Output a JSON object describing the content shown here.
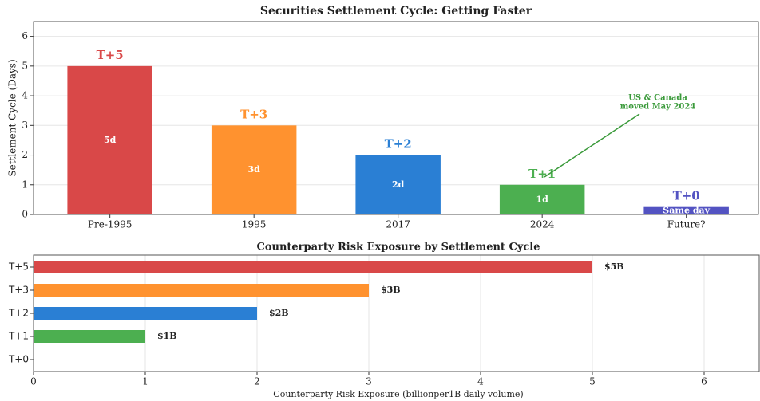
{
  "chart_data": [
    {
      "type": "bar",
      "title": "Securities Settlement Cycle: Getting Faster",
      "ylabel": "Settlement Cycle (Days)",
      "categories": [
        "Pre-1995",
        "1995",
        "2017",
        "2024",
        "Future?"
      ],
      "values": [
        5,
        3,
        2,
        1,
        0.25
      ],
      "labels": [
        "T+5",
        "T+3",
        "T+2",
        "T+1",
        "T+0"
      ],
      "inner_labels": [
        "5d",
        "3d",
        "2d",
        "1d",
        "Same day"
      ],
      "colors": [
        "#d94848",
        "#ff922f",
        "#2a7fd4",
        "#4caf50",
        "#5353c2"
      ],
      "ylim": [
        0,
        6.5
      ],
      "yticks": [
        0,
        1,
        2,
        3,
        4,
        5,
        6
      ],
      "grid": true,
      "annotation": {
        "text": [
          "US & Canada",
          "moved May 2024"
        ],
        "color": "#3a9a3a"
      }
    },
    {
      "type": "barh",
      "title": "Counterparty Risk Exposure by Settlement Cycle",
      "xlabel": "Counterparty Risk Exposure (billionper1B daily volume)",
      "categories": [
        "T+5",
        "T+3",
        "T+2",
        "T+1",
        "T+0"
      ],
      "values": [
        5,
        3,
        2,
        1,
        0
      ],
      "value_labels": [
        "$5B",
        "$3B",
        "$2B",
        "$1B",
        null
      ],
      "colors": [
        "#d94848",
        "#ff922f",
        "#2a7fd4",
        "#4caf50",
        "#5353c2"
      ],
      "xlim": [
        0,
        6.5
      ],
      "xticks": [
        0,
        1,
        2,
        3,
        4,
        5,
        6
      ],
      "grid": true
    }
  ]
}
